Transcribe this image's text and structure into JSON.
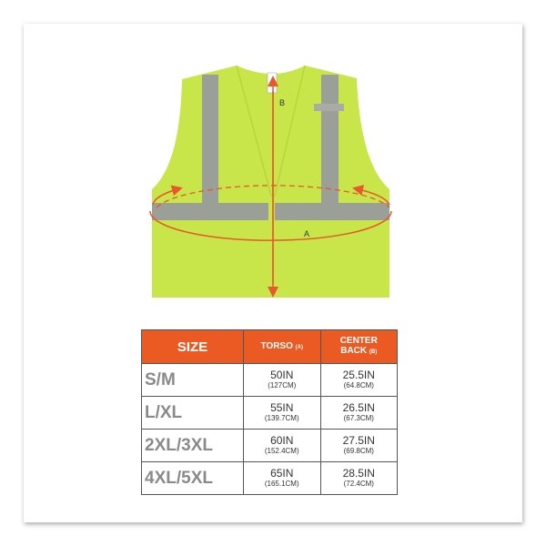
{
  "diagram": {
    "label_a": "A",
    "label_b": "B",
    "vest_color": "#c8e64a",
    "reflective_color": "#9a9f98",
    "arrow_color": "#e8582a"
  },
  "table": {
    "headers": {
      "size": "SIZE",
      "torso": "TORSO",
      "torso_tag": "(A)",
      "center_back_1": "CENTER",
      "center_back_2": "BACK",
      "center_back_tag": "(B)"
    },
    "header_color": "#ec5a24",
    "rows": [
      {
        "size": "S/M",
        "torso_in": "50IN",
        "torso_cm": "(127CM)",
        "back_in": "25.5IN",
        "back_cm": "(64.8CM)"
      },
      {
        "size": "L/XL",
        "torso_in": "55IN",
        "torso_cm": "(139.7CM)",
        "back_in": "26.5IN",
        "back_cm": "(67.3CM)"
      },
      {
        "size": "2XL/3XL",
        "torso_in": "60IN",
        "torso_cm": "(152.4CM)",
        "back_in": "27.5IN",
        "back_cm": "(69.8CM)"
      },
      {
        "size": "4XL/5XL",
        "torso_in": "65IN",
        "torso_cm": "(165.1CM)",
        "back_in": "28.5IN",
        "back_cm": "(72.4CM)"
      }
    ]
  }
}
